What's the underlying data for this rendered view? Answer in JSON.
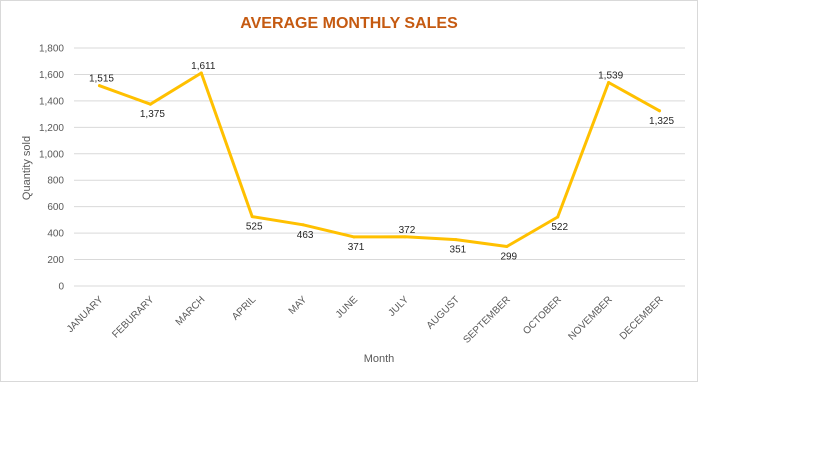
{
  "chart_data": {
    "type": "line",
    "title": "AVERAGE MONTHLY  SALES",
    "xlabel": "Month",
    "ylabel": "Quantity sold",
    "categories": [
      "JANUARY",
      "FEBURARY",
      "MARCH",
      "APRIL",
      "MAY",
      "JUNE",
      "JULY",
      "AUGUST",
      "SEPTEMBER",
      "OCTOBER",
      "NOVEMBER",
      "DECEMBER"
    ],
    "series": [
      {
        "values": [
          1515,
          1375,
          1611,
          525,
          463,
          371,
          372,
          351,
          299,
          522,
          1539,
          1325
        ],
        "data_labels": [
          "1,515",
          "1,375",
          "1,611",
          "525",
          "463",
          "371",
          "372",
          "351",
          "299",
          "522",
          "1,539",
          "1,325"
        ],
        "color": "#FFC000"
      }
    ],
    "ylim": [
      0,
      1800
    ],
    "y_ticks": [
      "0",
      "200",
      "400",
      "600",
      "800",
      "1,000",
      "1,200",
      "1,400",
      "1,600",
      "1,800"
    ],
    "grid": true,
    "legend": "none"
  },
  "colors": {
    "title": "#C55A11",
    "gridline": "#D9D9D9",
    "line": "#FFC000"
  }
}
